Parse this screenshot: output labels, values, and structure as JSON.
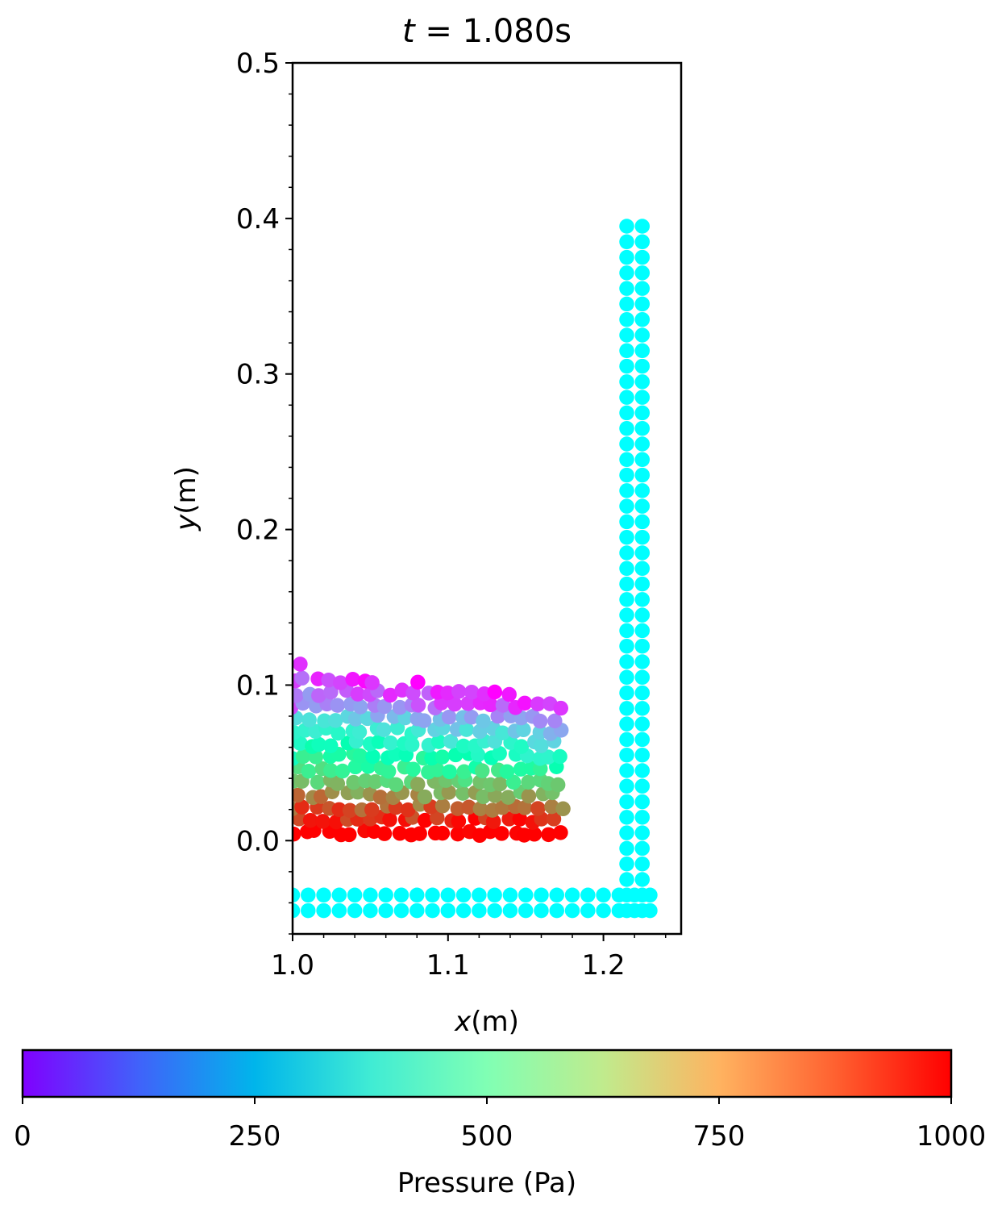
{
  "chart_data": {
    "type": "scatter",
    "title": {
      "var": "t",
      "eq": " = ",
      "value": " 1.080s"
    },
    "xlabel": {
      "var": "x",
      "unit": "(m)"
    },
    "ylabel": {
      "var": "y",
      "unit": "(m)"
    },
    "xlim": [
      1.0,
      1.25
    ],
    "ylim": [
      -0.06,
      0.5
    ],
    "x_ticks": [
      {
        "value": 1.0,
        "label": "1.0"
      },
      {
        "value": 1.1,
        "label": "1.1"
      },
      {
        "value": 1.2,
        "label": "1.2"
      }
    ],
    "y_ticks": [
      {
        "value": 0.0,
        "label": "0.0"
      },
      {
        "value": 0.1,
        "label": "0.1"
      },
      {
        "value": 0.2,
        "label": "0.2"
      },
      {
        "value": 0.3,
        "label": "0.3"
      },
      {
        "value": 0.4,
        "label": "0.4"
      },
      {
        "value": 0.5,
        "label": "0.5"
      }
    ],
    "colorbar": {
      "label": "Pressure (Pa)",
      "range": [
        0,
        1000
      ],
      "ticks": [
        "0",
        "250",
        "500",
        "750",
        "1000"
      ],
      "colormap": "rainbow",
      "orientation": "horizontal"
    },
    "wall_color": "#00ffff",
    "wall_particles": {
      "bottom_rows_y": [
        -0.045,
        -0.035
      ],
      "bottom_x_range": [
        1.0,
        1.23
      ],
      "right_columns_x": [
        1.215,
        1.225
      ],
      "right_y_range": [
        -0.045,
        0.395
      ],
      "spacing": 0.01
    },
    "fluid_particles": {
      "x_range": [
        1.0,
        1.175
      ],
      "y_range": [
        0.005,
        0.115
      ],
      "surface_height": [
        [
          1.0,
          0.115
        ],
        [
          1.05,
          0.105
        ],
        [
          1.1,
          0.1
        ],
        [
          1.175,
          0.09
        ]
      ],
      "pressure_range": [
        0,
        1000
      ],
      "note_pressure": "hydrostatic: highest at bottom, ~0 at free surface"
    }
  }
}
